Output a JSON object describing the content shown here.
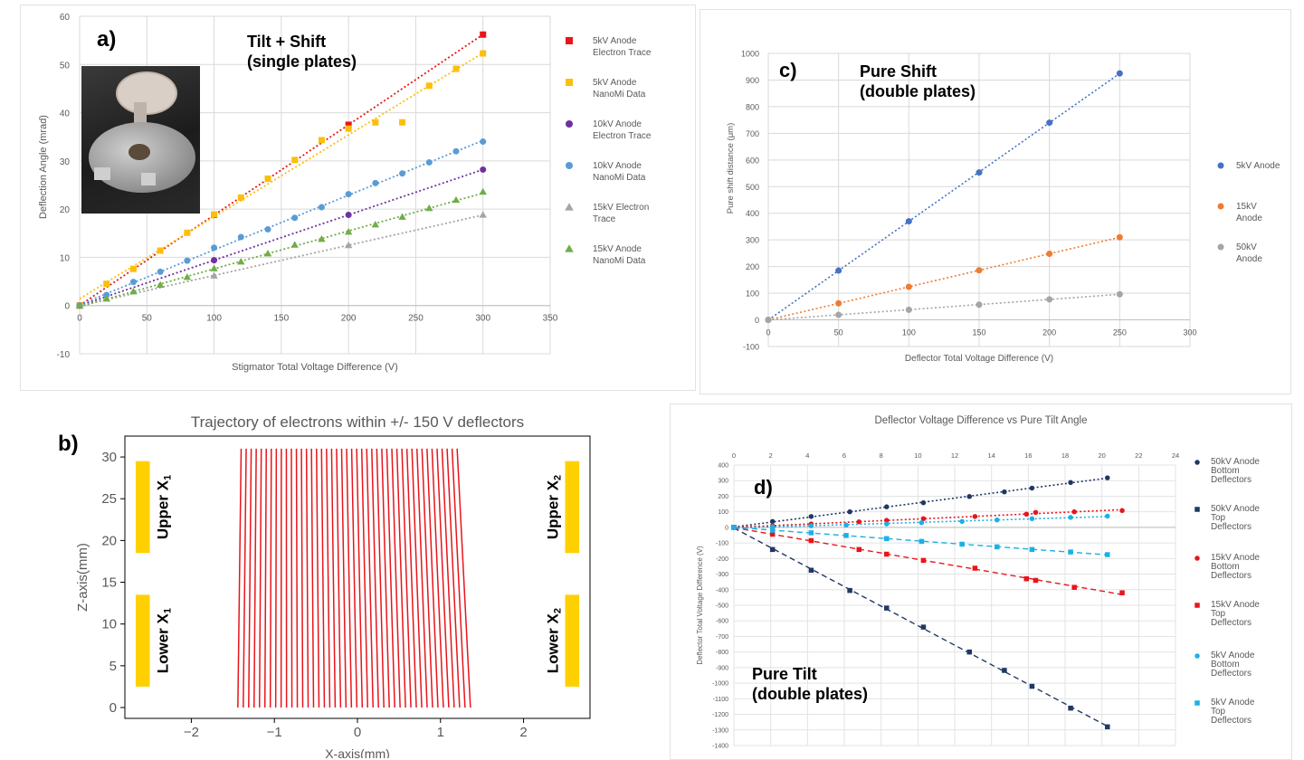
{
  "panel_a": {
    "label": "a)",
    "note": "Tilt + Shift\n(single plates)",
    "chart_data": {
      "type": "scatter",
      "xlabel": "Stigmator Total Voltage Difference (V)",
      "ylabel": "Deflection Angle (mrad)",
      "xlim": [
        0,
        350
      ],
      "ylim": [
        -10,
        60
      ],
      "xticks": [
        0,
        50,
        100,
        150,
        200,
        250,
        300,
        350
      ],
      "yticks": [
        -10,
        0,
        10,
        20,
        30,
        40,
        50,
        60
      ],
      "legend_position": "right",
      "series": [
        {
          "name": "5kV Anode Electron Trace",
          "color": "#e8151b",
          "marker": "square",
          "x": [
            0,
            100,
            200,
            300
          ],
          "y": [
            0,
            18.8,
            37.5,
            56.2
          ]
        },
        {
          "name": "5kV Anode NanoMi Data",
          "color": "#fbbf0c",
          "marker": "square",
          "x": [
            0,
            20,
            40,
            60,
            80,
            100,
            120,
            140,
            160,
            180,
            200,
            220,
            240,
            260,
            280,
            300
          ],
          "y": [
            0,
            4.5,
            7.6,
            11.4,
            15.1,
            18.9,
            22.4,
            26.3,
            30.2,
            34.3,
            36.7,
            38.0,
            38.0,
            45.6,
            49.1,
            52.3
          ]
        },
        {
          "name": "10kV Anode Electron Trace",
          "color": "#7030a0",
          "marker": "circle",
          "x": [
            0,
            100,
            200,
            300
          ],
          "y": [
            0,
            9.4,
            18.8,
            28.2
          ]
        },
        {
          "name": "10kV Anode NanoMi Data",
          "color": "#5b9bd5",
          "marker": "circle",
          "x": [
            0,
            20,
            40,
            60,
            80,
            100,
            120,
            140,
            160,
            180,
            200,
            220,
            240,
            260,
            280,
            300
          ],
          "y": [
            0,
            2.2,
            4.9,
            7.0,
            9.3,
            12.0,
            14.2,
            15.8,
            18.2,
            20.4,
            23.1,
            25.4,
            27.4,
            29.7,
            32.0,
            34.0
          ]
        },
        {
          "name": "15kV Electron Trace",
          "color": "#a5a5a5",
          "marker": "triangle",
          "x": [
            0,
            100,
            200,
            300
          ],
          "y": [
            0,
            6.2,
            12.5,
            18.8
          ]
        },
        {
          "name": "15kV Anode NanoMi Data",
          "color": "#70ad47",
          "marker": "triangle",
          "x": [
            0,
            20,
            40,
            60,
            80,
            100,
            120,
            140,
            160,
            180,
            200,
            220,
            240,
            260,
            280,
            300
          ],
          "y": [
            0,
            1.4,
            2.9,
            4.3,
            5.9,
            7.7,
            9.1,
            10.8,
            12.6,
            13.8,
            15.3,
            16.8,
            18.4,
            20.2,
            21.9,
            23.6
          ]
        }
      ]
    }
  },
  "panel_b": {
    "label": "b)",
    "chart_data": {
      "type": "line",
      "title": "Trajectory of electrons within +/- 150 V deflectors",
      "xlabel": "X-axis(mm)",
      "ylabel": "Z-axis(mm)",
      "xlim": [
        -2.8,
        2.8
      ],
      "ylim": [
        -1.3,
        32.5
      ],
      "xticks": [
        -2,
        -1,
        0,
        1,
        2
      ],
      "yticks": [
        0,
        5,
        10,
        15,
        20,
        25,
        30
      ],
      "trajectory_color": "#e8151b",
      "trajectories": {
        "x_start": -1.4,
        "x_end": 1.2,
        "z_start": 31,
        "z_end": 0,
        "count": 44,
        "drift": 0.1
      },
      "plates": [
        {
          "label": "Upper X",
          "sub": "1",
          "x0": -2.67,
          "x1": -2.5,
          "z0": 18.5,
          "z1": 29.5,
          "side": "left"
        },
        {
          "label": "Lower X",
          "sub": "1",
          "x0": -2.67,
          "x1": -2.5,
          "z0": 2.5,
          "z1": 13.5,
          "side": "left"
        },
        {
          "label": "Upper X",
          "sub": "2",
          "x0": 2.5,
          "x1": 2.67,
          "z0": 18.5,
          "z1": 29.5,
          "side": "right"
        },
        {
          "label": "Lower X",
          "sub": "2",
          "x0": 2.5,
          "x1": 2.67,
          "z0": 2.5,
          "z1": 13.5,
          "side": "right"
        }
      ],
      "plate_color": "#ffd000"
    }
  },
  "panel_c": {
    "label": "c)",
    "note": "Pure Shift\n(double plates)",
    "chart_data": {
      "type": "scatter",
      "xlabel": "Deflector Total Voltage  Difference (V)",
      "ylabel": "Pure shift distance (μm)",
      "xlim": [
        0,
        300
      ],
      "ylim": [
        -100,
        1000
      ],
      "xticks": [
        0,
        50,
        100,
        150,
        200,
        250,
        300
      ],
      "yticks": [
        -100,
        0,
        100,
        200,
        300,
        400,
        500,
        600,
        700,
        800,
        900,
        1000
      ],
      "legend_position": "right",
      "series": [
        {
          "name": "5kV Anode",
          "color": "#4472c4",
          "marker": "circle",
          "x": [
            0,
            50,
            100,
            150,
            200,
            250
          ],
          "y": [
            0,
            185,
            370,
            553,
            740,
            925
          ]
        },
        {
          "name": "15kV Anode",
          "color": "#ed7d31",
          "marker": "circle",
          "x": [
            0,
            50,
            100,
            150,
            200,
            250
          ],
          "y": [
            0,
            62,
            124,
            186,
            248,
            310
          ]
        },
        {
          "name": "50kV Anode",
          "color": "#a5a5a5",
          "marker": "circle",
          "x": [
            0,
            50,
            100,
            150,
            200,
            250
          ],
          "y": [
            0,
            19,
            38,
            57,
            77,
            96
          ]
        }
      ]
    }
  },
  "panel_d": {
    "label": "d)",
    "note": "Pure Tilt\n(double plates)",
    "chart_data": {
      "type": "scatter",
      "title": "Deflector Voltage Difference vs Pure Tilt Angle",
      "xlabel": "",
      "ylabel": "Deflector Total Voltage  Difference (V)",
      "xlim": [
        0,
        24
      ],
      "ylim": [
        -1400,
        400
      ],
      "xticks": [
        0,
        2,
        4,
        6,
        8,
        10,
        12,
        14,
        16,
        18,
        20,
        22,
        24
      ],
      "yticks": [
        -1400,
        -1300,
        -1200,
        -1100,
        -1000,
        -900,
        -800,
        -700,
        -600,
        -500,
        -400,
        -300,
        -200,
        -100,
        0,
        100,
        200,
        300,
        400
      ],
      "x_axis_position": "top",
      "legend_position": "right",
      "series": [
        {
          "name": "50kV Anode Bottom Deflectors",
          "color": "#1f3864",
          "marker": "circle",
          "dash": "dotted",
          "x": [
            0,
            2.1,
            4.2,
            6.3,
            8.3,
            10.3,
            12.8,
            14.7,
            16.2,
            18.3,
            20.3
          ],
          "y": [
            0,
            38,
            70,
            100,
            132,
            158,
            198,
            228,
            252,
            288,
            318
          ]
        },
        {
          "name": "50kV Anode Top Deflectors",
          "color": "#1f3864",
          "marker": "square",
          "dash": "dashed",
          "x": [
            0,
            2.1,
            4.2,
            6.3,
            8.3,
            10.3,
            12.8,
            14.7,
            16.2,
            18.3,
            20.3
          ],
          "y": [
            0,
            -142,
            -275,
            -405,
            -518,
            -640,
            -800,
            -918,
            -1020,
            -1160,
            -1280
          ]
        },
        {
          "name": "15kV Anode Bottom Deflectors",
          "color": "#e8151b",
          "marker": "circle",
          "dash": "dotted",
          "x": [
            0,
            2.1,
            4.2,
            6.8,
            8.3,
            10.3,
            13.1,
            15.9,
            16.4,
            18.5,
            21.1
          ],
          "y": [
            0,
            10,
            22,
            36,
            45,
            56,
            70,
            85,
            96,
            100,
            108
          ]
        },
        {
          "name": "15kV Anode Top Deflectors",
          "color": "#e8151b",
          "marker": "square",
          "dash": "dashed",
          "x": [
            0,
            2.1,
            4.2,
            6.8,
            8.3,
            10.3,
            13.1,
            15.9,
            16.4,
            18.5,
            21.1
          ],
          "y": [
            0,
            -44,
            -85,
            -142,
            -172,
            -212,
            -262,
            -330,
            -340,
            -385,
            -420
          ]
        },
        {
          "name": "5kV Anode Bottom Deflectors",
          "color": "#1cb0e6",
          "marker": "circle",
          "dash": "dotted",
          "x": [
            0,
            2.1,
            4.2,
            6.1,
            8.3,
            10.2,
            12.4,
            14.3,
            16.2,
            18.3,
            20.3
          ],
          "y": [
            0,
            4,
            10,
            15,
            22,
            30,
            38,
            48,
            56,
            64,
            72
          ]
        },
        {
          "name": "5kV Anode Top Deflectors",
          "color": "#1cb0e6",
          "marker": "square",
          "dash": "dashed",
          "x": [
            0,
            2.1,
            4.2,
            6.1,
            8.3,
            10.2,
            12.4,
            14.3,
            16.2,
            18.3,
            20.3
          ],
          "y": [
            0,
            -18,
            -35,
            -52,
            -72,
            -90,
            -108,
            -125,
            -142,
            -158,
            -175
          ]
        }
      ]
    }
  }
}
